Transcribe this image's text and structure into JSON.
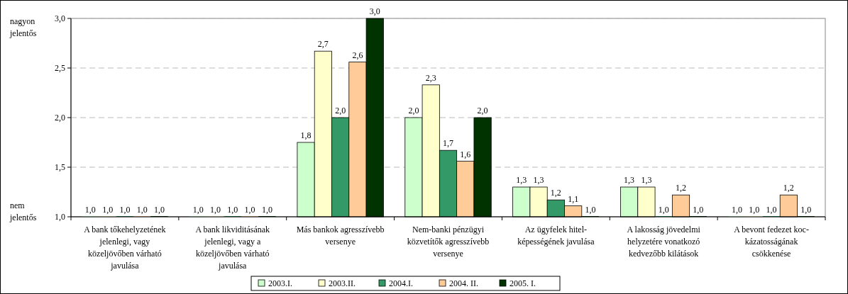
{
  "chart_data": {
    "type": "bar",
    "categories": [
      "A bank tőkehelyzetének\njelenlegi, vagy\nközeljövőben várható\njavulása",
      "A bank likviditásának\njelenlegi, vagy a\nközeljövőben várható\njavulása",
      "Más bankok agresszívebb\nversenye",
      "Nem-banki pénzügyi\nközvetítők agresszívebb\nversenye",
      "Az ügyfelek hitel-\nképességének javulása",
      "A lakosság jövedelmi\nhelyzetére vonatkozó\nkedvezőbb kilátások",
      "A bevont fedezet koc-\nkázatosságának\ncsökkenése"
    ],
    "series": [
      {
        "name": "2003.I.",
        "color": "#ccffcc",
        "values": [
          1.0,
          1.0,
          1.75,
          2.0,
          1.3,
          1.3,
          1.0
        ],
        "value_labels": [
          "1,0",
          "1,0",
          "1,8",
          "2,0",
          "1,3",
          "1,3",
          "1,0"
        ]
      },
      {
        "name": "2003.II.",
        "color": "#ffffcc",
        "values": [
          1.0,
          1.0,
          2.67,
          2.33,
          1.3,
          1.3,
          1.0
        ],
        "value_labels": [
          "1,0",
          "1,0",
          "2,7",
          "2,3",
          "1,3",
          "1,3",
          "1,0"
        ]
      },
      {
        "name": "2004.I.",
        "color": "#339966",
        "values": [
          1.0,
          1.0,
          2.0,
          1.67,
          1.17,
          1.0,
          1.0
        ],
        "value_labels": [
          "1,0",
          "1,0",
          "2,0",
          "1,7",
          "1,2",
          "1,0",
          "1,0"
        ]
      },
      {
        "name": "2004. II.",
        "color": "#ffcc99",
        "values": [
          1.0,
          1.0,
          2.56,
          1.56,
          1.11,
          1.22,
          1.22
        ],
        "value_labels": [
          "1,0",
          "1,0",
          "2,6",
          "1,6",
          "1,1",
          "1,2",
          "1,2"
        ]
      },
      {
        "name": "2005. I.",
        "color": "#003300",
        "values": [
          1.0,
          1.0,
          3.0,
          2.0,
          1.0,
          1.0,
          1.0
        ],
        "value_labels": [
          "1,0",
          "1,0",
          "3,0",
          "2,0",
          "1,0",
          "1,0",
          "1,0"
        ]
      }
    ],
    "ylim": [
      1.0,
      3.0
    ],
    "yticks": [
      {
        "value": 1.0,
        "label": "1,0"
      },
      {
        "value": 1.5,
        "label": "1,5"
      },
      {
        "value": 2.0,
        "label": "2,0"
      },
      {
        "value": 2.5,
        "label": "2,5"
      },
      {
        "value": 3.0,
        "label": "3,0"
      }
    ],
    "annotations": [
      "nagyon jelentős",
      "nem jelentős"
    ],
    "grid": "y",
    "legend": "bottom"
  }
}
